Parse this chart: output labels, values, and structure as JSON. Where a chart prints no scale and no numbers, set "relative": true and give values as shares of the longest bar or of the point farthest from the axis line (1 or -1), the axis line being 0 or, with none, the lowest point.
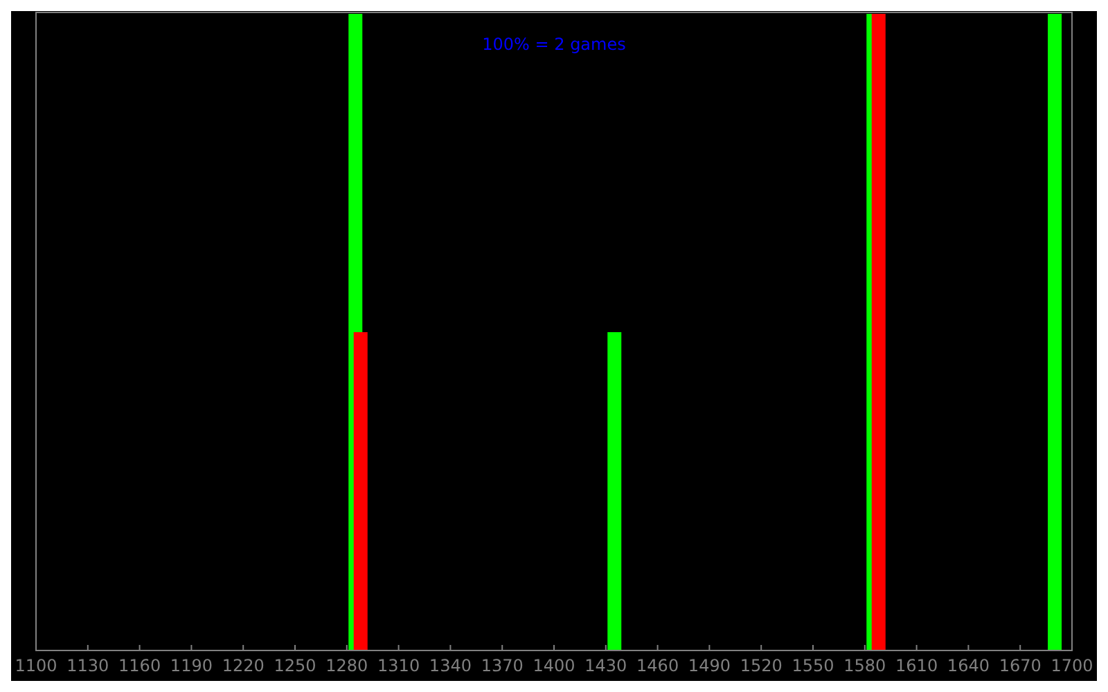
{
  "chart_data": {
    "type": "bar",
    "relative": true,
    "xlim": [
      1100,
      1700
    ],
    "xticks": [
      1100,
      1130,
      1160,
      1190,
      1220,
      1250,
      1280,
      1310,
      1340,
      1370,
      1400,
      1430,
      1460,
      1490,
      1520,
      1550,
      1580,
      1610,
      1640,
      1670,
      1700
    ],
    "series": [
      {
        "color": "#00ff00",
        "x": [
          1285,
          1435,
          1585,
          1690
        ],
        "values": [
          1,
          0.5,
          1,
          1
        ]
      },
      {
        "color": "#ff0000",
        "x": [
          1288,
          1588
        ],
        "values": [
          0.5,
          1
        ]
      }
    ],
    "annotations": [
      "100% = 2 games"
    ]
  }
}
